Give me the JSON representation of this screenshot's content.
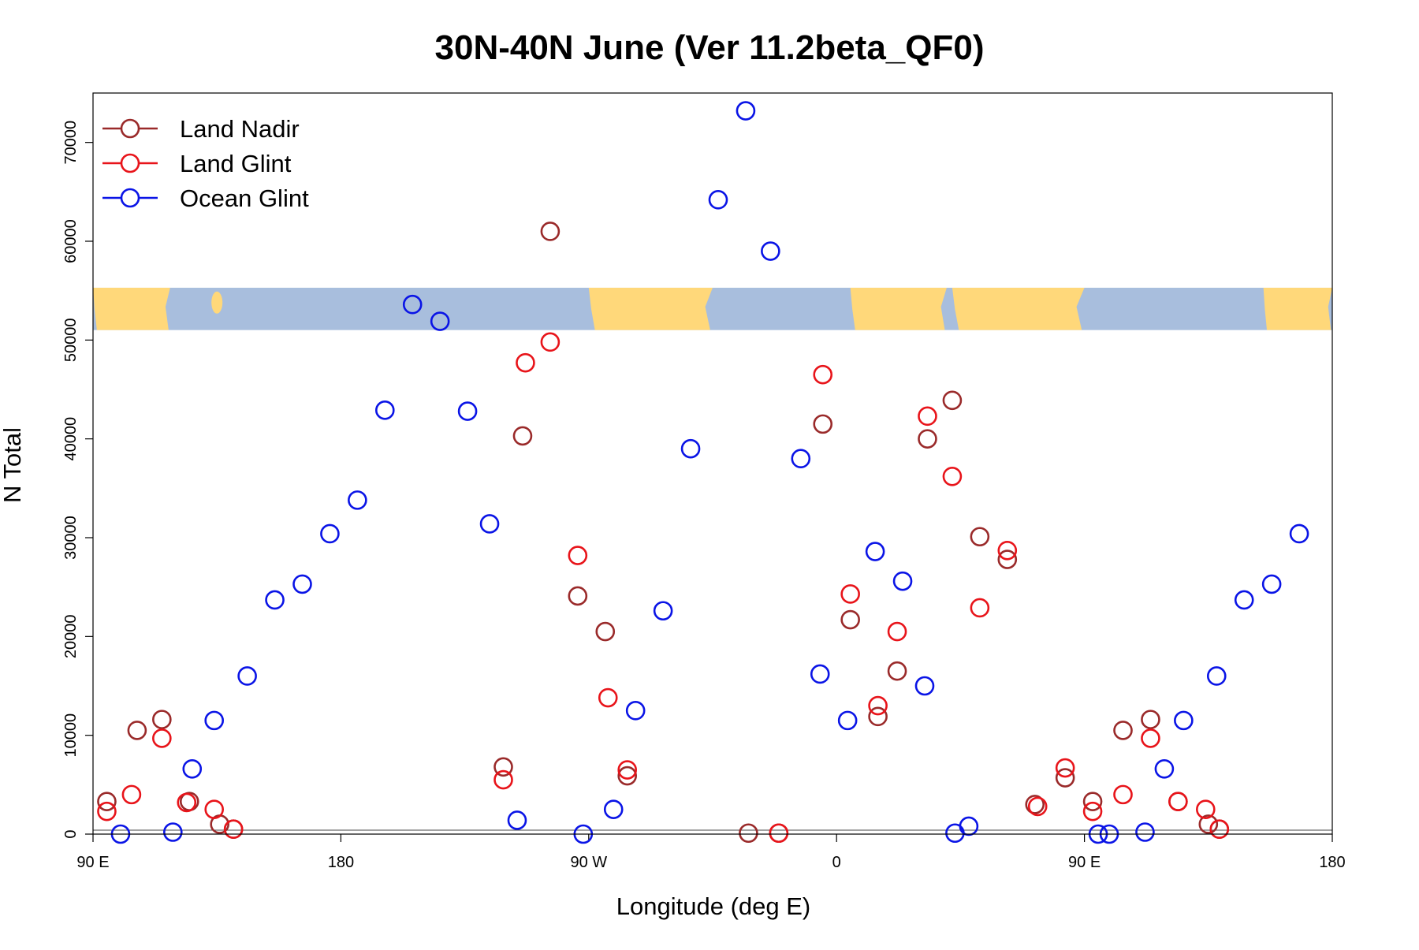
{
  "chart_data": {
    "type": "scatter",
    "title": "30N-40N June (Ver 11.2beta_QF0)",
    "xlabel": "Longitude (deg E)",
    "ylabel": "N Total",
    "xlim": [
      90,
      540
    ],
    "ylim": [
      0,
      75000
    ],
    "x_ticks": [
      {
        "value": 90,
        "label": "90 E"
      },
      {
        "value": 180,
        "label": "180"
      },
      {
        "value": 270,
        "label": "90 W"
      },
      {
        "value": 360,
        "label": "0"
      },
      {
        "value": 450,
        "label": "90 E"
      },
      {
        "value": 540,
        "label": "180"
      }
    ],
    "y_ticks": [
      {
        "value": 0,
        "label": "0"
      },
      {
        "value": 10000,
        "label": "10000"
      },
      {
        "value": 20000,
        "label": "20000"
      },
      {
        "value": 30000,
        "label": "30000"
      },
      {
        "value": 40000,
        "label": "40000"
      },
      {
        "value": 50000,
        "label": "50000"
      },
      {
        "value": 60000,
        "label": "60000"
      },
      {
        "value": 70000,
        "label": "70000"
      }
    ],
    "grid": false,
    "legend_position": "top-left",
    "map_strip": {
      "y_range": [
        51000,
        55300
      ],
      "land_color": "#FFD87A",
      "ocean_color": "#A8BEDD"
    },
    "series": [
      {
        "name": "Land Nadir",
        "color": "#9A2A2A",
        "points": [
          [
            95,
            3300
          ],
          [
            106,
            10500
          ],
          [
            115,
            11600
          ],
          [
            125,
            3300
          ],
          [
            136,
            1000
          ],
          [
            141,
            500
          ],
          [
            239,
            6800
          ],
          [
            246,
            40300
          ],
          [
            256,
            61000
          ],
          [
            266,
            24100
          ],
          [
            276,
            20500
          ],
          [
            284,
            5900
          ],
          [
            328,
            100
          ],
          [
            339,
            100
          ],
          [
            355,
            41500
          ],
          [
            365,
            21700
          ],
          [
            375,
            11900
          ],
          [
            382,
            16500
          ],
          [
            393,
            40000
          ],
          [
            402,
            43900
          ],
          [
            412,
            30100
          ],
          [
            422,
            27800
          ],
          [
            432,
            3000
          ],
          [
            443,
            5700
          ],
          [
            453,
            3300
          ],
          [
            464,
            10500
          ],
          [
            474,
            11600
          ],
          [
            484,
            3300
          ],
          [
            495,
            1000
          ],
          [
            499,
            500
          ]
        ]
      },
      {
        "name": "Land Glint",
        "color": "#E8141A",
        "points": [
          [
            95,
            2300
          ],
          [
            104,
            4000
          ],
          [
            115,
            9700
          ],
          [
            124,
            3200
          ],
          [
            134,
            2500
          ],
          [
            141,
            500
          ],
          [
            239,
            5500
          ],
          [
            247,
            47700
          ],
          [
            256,
            49800
          ],
          [
            266,
            28200
          ],
          [
            277,
            13800
          ],
          [
            284,
            6500
          ],
          [
            339,
            100
          ],
          [
            355,
            46500
          ],
          [
            365,
            24300
          ],
          [
            375,
            13000
          ],
          [
            382,
            20500
          ],
          [
            393,
            42300
          ],
          [
            402,
            36200
          ],
          [
            412,
            22900
          ],
          [
            422,
            28700
          ],
          [
            433,
            2800
          ],
          [
            443,
            6700
          ],
          [
            453,
            2300
          ],
          [
            464,
            4000
          ],
          [
            474,
            9700
          ],
          [
            484,
            3300
          ],
          [
            494,
            2500
          ],
          [
            499,
            500
          ]
        ]
      },
      {
        "name": "Ocean Glint",
        "color": "#0A14E6",
        "points": [
          [
            100,
            0
          ],
          [
            119,
            200
          ],
          [
            126,
            6600
          ],
          [
            134,
            11500
          ],
          [
            146,
            16000
          ],
          [
            156,
            23700
          ],
          [
            166,
            25300
          ],
          [
            176,
            30400
          ],
          [
            186,
            33800
          ],
          [
            196,
            42900
          ],
          [
            206,
            53600
          ],
          [
            216,
            51900
          ],
          [
            226,
            42800
          ],
          [
            234,
            31400
          ],
          [
            244,
            1400
          ],
          [
            268,
            0
          ],
          [
            279,
            2500
          ],
          [
            287,
            12500
          ],
          [
            297,
            22600
          ],
          [
            307,
            39000
          ],
          [
            317,
            64200
          ],
          [
            327,
            73200
          ],
          [
            336,
            59000
          ],
          [
            347,
            38000
          ],
          [
            354,
            16200
          ],
          [
            364,
            11500
          ],
          [
            374,
            28600
          ],
          [
            384,
            25600
          ],
          [
            392,
            15000
          ],
          [
            403,
            100
          ],
          [
            408,
            800
          ],
          [
            455,
            0
          ],
          [
            459,
            0
          ],
          [
            472,
            200
          ],
          [
            479,
            6600
          ],
          [
            486,
            11500
          ],
          [
            498,
            16000
          ],
          [
            508,
            23700
          ],
          [
            518,
            25300
          ],
          [
            528,
            30400
          ]
        ]
      }
    ]
  }
}
